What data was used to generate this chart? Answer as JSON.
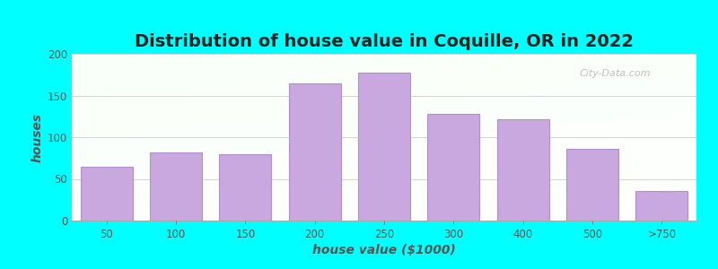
{
  "title": "Distribution of house value in Coquille, OR in 2022",
  "xlabel": "house value ($1000)",
  "ylabel": "houses",
  "categories": [
    "50",
    "100",
    "150",
    "200",
    "250",
    "300",
    "400",
    "500",
    ">750"
  ],
  "values": [
    65,
    82,
    80,
    165,
    177,
    128,
    122,
    86,
    35
  ],
  "bar_color": "#C9A8E0",
  "bar_edge_color": "#B090CC",
  "background_color": "#00FFFF",
  "ylim": [
    0,
    200
  ],
  "yticks": [
    0,
    50,
    100,
    150,
    200
  ],
  "title_fontsize": 14,
  "axis_label_fontsize": 10,
  "tick_fontsize": 8.5,
  "watermark_text": "City-Data.com",
  "title_color": "#222222",
  "tick_color": "#555555",
  "label_color": "#555555"
}
